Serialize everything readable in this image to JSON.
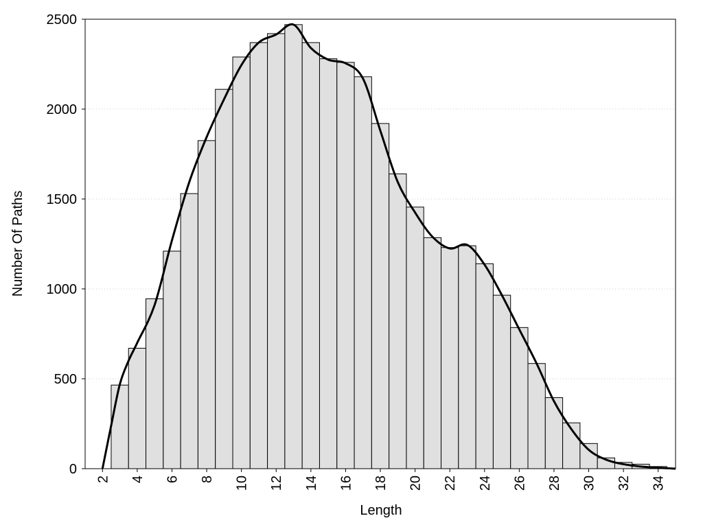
{
  "chart_data": {
    "type": "histogram",
    "x_label": "Length",
    "y_label": "Number Of Paths",
    "bins": [
      2.5,
      3.5,
      4.5,
      5.5,
      6.5,
      7.5,
      8.5,
      9.5,
      10.5,
      11.5,
      12.5,
      13.5,
      14.5,
      15.5,
      16.5,
      17.5,
      18.5,
      19.5,
      20.5,
      21.5,
      22.5,
      23.5,
      24.5,
      25.5,
      26.5,
      27.5,
      28.5,
      29.5,
      30.5,
      31.5,
      32.5,
      33.5,
      34.5
    ],
    "values": [
      465,
      670,
      945,
      1210,
      1530,
      1825,
      2110,
      2290,
      2370,
      2420,
      2470,
      2370,
      2280,
      2260,
      2180,
      1920,
      1640,
      1455,
      1285,
      1230,
      1240,
      1140,
      965,
      785,
      585,
      395,
      255,
      140,
      60,
      35,
      25,
      12
    ],
    "color": "#e0e0e0",
    "curve": {
      "type": "line",
      "color": "#000000",
      "x": [
        2,
        2.5,
        3,
        3.5,
        4,
        5,
        6,
        7,
        8,
        9,
        10,
        11,
        12,
        13,
        14,
        15,
        16,
        17,
        18,
        19,
        20,
        21,
        22,
        23,
        24,
        25,
        26,
        27,
        28,
        29,
        30,
        31,
        32,
        33,
        34,
        35
      ],
      "y": [
        0,
        240,
        470,
        600,
        700,
        910,
        1270,
        1595,
        1845,
        2055,
        2245,
        2370,
        2415,
        2470,
        2340,
        2275,
        2255,
        2170,
        1880,
        1595,
        1425,
        1290,
        1225,
        1245,
        1135,
        965,
        775,
        585,
        375,
        220,
        105,
        50,
        25,
        12,
        5,
        0
      ]
    },
    "xlim": [
      1,
      35
    ],
    "ylim": [
      0,
      2500
    ],
    "xticks": [
      2,
      4,
      6,
      8,
      10,
      12,
      14,
      16,
      18,
      20,
      22,
      24,
      26,
      28,
      30,
      32,
      34
    ],
    "yticks": [
      0,
      500,
      1000,
      1500,
      2000,
      2500
    ],
    "grid": true
  }
}
